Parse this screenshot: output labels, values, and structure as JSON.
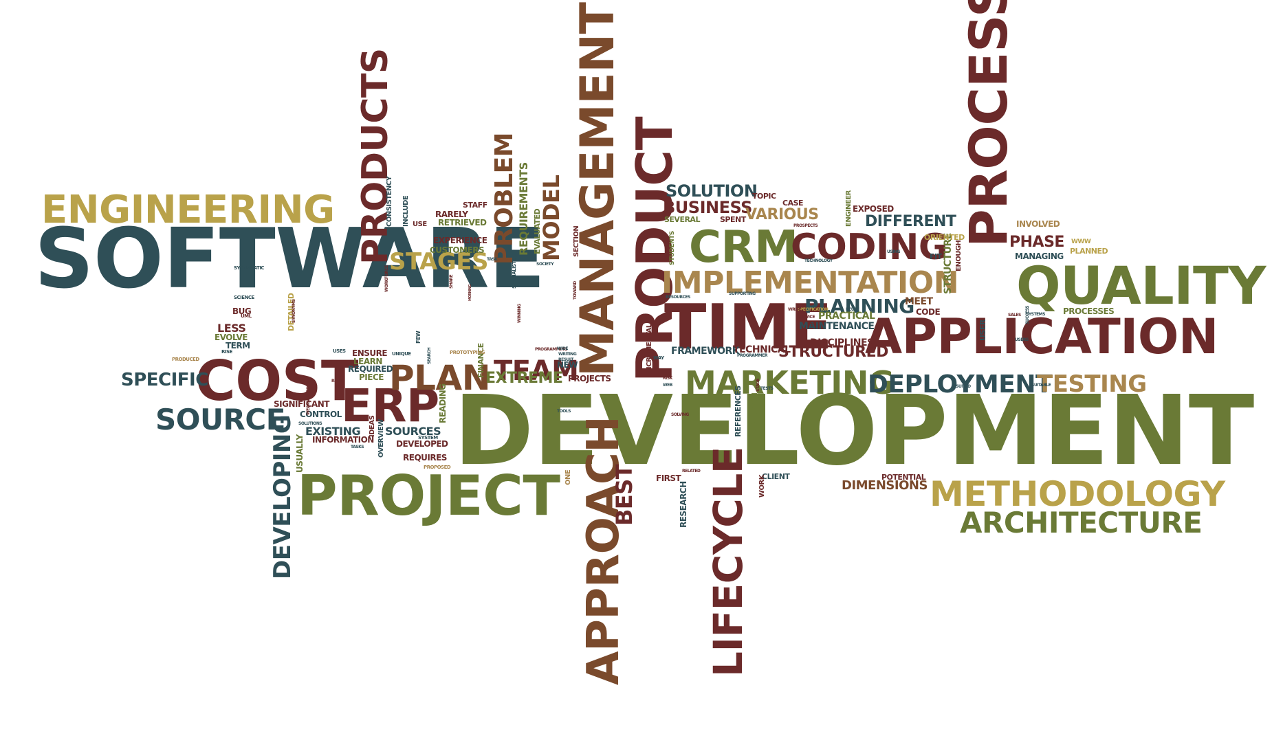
{
  "palette": {
    "teal": "#2f4f57",
    "maroon": "#6b2a2a",
    "olive": "#6a7a36",
    "gold": "#b9a24a",
    "tan": "#a9864e",
    "brown": "#7a4a2c"
  },
  "words": [
    {
      "text": "SOFTWARE",
      "color": "teal"
    },
    {
      "text": "DEVELOPMENT",
      "color": "olive"
    },
    {
      "text": "ENGINEERING",
      "color": "gold"
    },
    {
      "text": "PROCESS",
      "color": "maroon"
    },
    {
      "text": "QUALITY",
      "color": "olive"
    },
    {
      "text": "APPLICATION",
      "color": "maroon"
    },
    {
      "text": "PROJECT",
      "color": "olive"
    },
    {
      "text": "METHODOLOGY",
      "color": "gold"
    },
    {
      "text": "ARCHITECTURE",
      "color": "olive"
    },
    {
      "text": "MANAGEMENT",
      "color": "brown"
    },
    {
      "text": "PRODUCT",
      "color": "maroon"
    },
    {
      "text": "TIME",
      "color": "maroon"
    },
    {
      "text": "CRM",
      "color": "olive"
    },
    {
      "text": "CODING",
      "color": "maroon"
    },
    {
      "text": "IMPLEMENTATION",
      "color": "tan"
    },
    {
      "text": "COST",
      "color": "maroon"
    },
    {
      "text": "ERP",
      "color": "maroon"
    },
    {
      "text": "PLAN",
      "color": "brown"
    },
    {
      "text": "TEAM",
      "color": "maroon"
    },
    {
      "text": "MARKETING",
      "color": "olive"
    },
    {
      "text": "DEPLOYMENT",
      "color": "teal"
    },
    {
      "text": "TESTING",
      "color": "tan"
    },
    {
      "text": "APPROACH",
      "color": "brown"
    },
    {
      "text": "LIFECYCLE",
      "color": "maroon"
    },
    {
      "text": "DEVELOPING",
      "color": "teal"
    },
    {
      "text": "PRODUCTS",
      "color": "maroon"
    },
    {
      "text": "PROBLEM",
      "color": "brown"
    },
    {
      "text": "MODEL",
      "color": "brown"
    },
    {
      "text": "STAGES",
      "color": "gold"
    },
    {
      "text": "SOURCE",
      "color": "teal"
    },
    {
      "text": "SPECIFIC",
      "color": "teal"
    },
    {
      "text": "PLANNING",
      "color": "teal"
    },
    {
      "text": "STRUCTURED",
      "color": "maroon"
    },
    {
      "text": "DIFFERENT",
      "color": "teal"
    },
    {
      "text": "BUSINESS",
      "color": "maroon"
    },
    {
      "text": "SOLUTION",
      "color": "teal"
    },
    {
      "text": "VARIOUS",
      "color": "tan"
    },
    {
      "text": "PHASE",
      "color": "maroon"
    },
    {
      "text": "BEST",
      "color": "maroon"
    },
    {
      "text": "EXTREME",
      "color": "olive"
    },
    {
      "text": "FRAMEWORK",
      "color": "teal"
    },
    {
      "text": "DIMENSIONS",
      "color": "brown"
    },
    {
      "text": "REQUIREMENTS",
      "color": "olive"
    },
    {
      "text": "SOURCES",
      "color": "teal"
    },
    {
      "text": "EXISTING",
      "color": "teal"
    },
    {
      "text": "CUSTOMERS",
      "color": "olive"
    },
    {
      "text": "EXPERIENCE",
      "color": "maroon"
    },
    {
      "text": "RETRIEVED",
      "color": "olive"
    },
    {
      "text": "RARELY",
      "color": "maroon"
    },
    {
      "text": "STAFF",
      "color": "maroon"
    },
    {
      "text": "EVALUATED",
      "color": "olive"
    },
    {
      "text": "CONSISTENCY",
      "color": "teal"
    },
    {
      "text": "INCLUDE",
      "color": "teal"
    },
    {
      "text": "USE",
      "color": "maroon"
    },
    {
      "text": "ENSURE",
      "color": "maroon"
    },
    {
      "text": "REQUIRED",
      "color": "teal"
    },
    {
      "text": "LEARN",
      "color": "olive"
    },
    {
      "text": "PIECE",
      "color": "olive"
    },
    {
      "text": "LESS",
      "color": "maroon"
    },
    {
      "text": "BUG",
      "color": "maroon"
    },
    {
      "text": "EVOLVE",
      "color": "olive"
    },
    {
      "text": "TERM",
      "color": "teal"
    },
    {
      "text": "SIGNIFICANT",
      "color": "maroon"
    },
    {
      "text": "CONTROL",
      "color": "teal"
    },
    {
      "text": "INFORMATION",
      "color": "maroon"
    },
    {
      "text": "DEVELOPED",
      "color": "maroon"
    },
    {
      "text": "REQUIRES",
      "color": "maroon"
    },
    {
      "text": "IDEAS",
      "color": "maroon"
    },
    {
      "text": "OVERVIEW",
      "color": "teal"
    },
    {
      "text": "USUALLY",
      "color": "olive"
    },
    {
      "text": "READING",
      "color": "olive"
    },
    {
      "text": "FINANCE",
      "color": "olive"
    },
    {
      "text": "NEW",
      "color": "teal"
    },
    {
      "text": "PROJECTS",
      "color": "maroon"
    },
    {
      "text": "TECHNICAL",
      "color": "maroon"
    },
    {
      "text": "DISCIPLINES",
      "color": "maroon"
    },
    {
      "text": "MAINTENANCE",
      "color": "teal"
    },
    {
      "text": "PRACTICAL",
      "color": "olive"
    },
    {
      "text": "MEET",
      "color": "brown"
    },
    {
      "text": "CODE",
      "color": "maroon"
    },
    {
      "text": "STRUCTURE",
      "color": "olive"
    },
    {
      "text": "ENOUGH",
      "color": "maroon"
    },
    {
      "text": "ORIENTED",
      "color": "gold"
    },
    {
      "text": "FIT",
      "color": "teal"
    },
    {
      "text": "INVOLVED",
      "color": "tan"
    },
    {
      "text": "MANAGING",
      "color": "teal"
    },
    {
      "text": "PLANNED",
      "color": "gold"
    },
    {
      "text": "PROCESSES",
      "color": "olive"
    },
    {
      "text": "EXPOSED",
      "color": "maroon"
    },
    {
      "text": "ENGINEER",
      "color": "olive"
    },
    {
      "text": "CASE",
      "color": "maroon"
    },
    {
      "text": "TOPIC",
      "color": "maroon"
    },
    {
      "text": "SPENT",
      "color": "maroon"
    },
    {
      "text": "SEVERAL",
      "color": "olive"
    },
    {
      "text": "INCREMENTAL",
      "color": "maroon"
    },
    {
      "text": "STUDENTS",
      "color": "olive"
    },
    {
      "text": "REFERENCES",
      "color": "teal"
    },
    {
      "text": "EVOLUTION",
      "color": "olive"
    },
    {
      "text": "RESEARCH",
      "color": "teal"
    },
    {
      "text": "FIRST",
      "color": "maroon"
    },
    {
      "text": "CLIENT",
      "color": "teal"
    },
    {
      "text": "WORK",
      "color": "maroon"
    },
    {
      "text": "POTENTIAL",
      "color": "maroon"
    },
    {
      "text": "ONE",
      "color": "tan"
    },
    {
      "text": "SECTION",
      "color": "maroon"
    },
    {
      "text": "DETAILED",
      "color": "gold"
    },
    {
      "text": "USER",
      "color": "teal"
    },
    {
      "text": "WWW",
      "color": "gold"
    },
    {
      "text": "SYSTEMATIC",
      "color": "teal"
    },
    {
      "text": "SCIENCE",
      "color": "teal"
    },
    {
      "text": "RISE",
      "color": "teal"
    },
    {
      "text": "PRODUCED",
      "color": "tan"
    },
    {
      "text": "USES",
      "color": "teal"
    },
    {
      "text": "UNIQUE",
      "color": "teal"
    },
    {
      "text": "SYSTEM",
      "color": "teal"
    },
    {
      "text": "PROPOSED",
      "color": "tan"
    },
    {
      "text": "SOLUTIONS",
      "color": "teal"
    },
    {
      "text": "TASKS",
      "color": "teal"
    },
    {
      "text": "REFER",
      "color": "maroon"
    },
    {
      "text": "PROTOTYPING",
      "color": "tan"
    },
    {
      "text": "SEARCH",
      "color": "teal"
    },
    {
      "text": "FEW",
      "color": "teal"
    },
    {
      "text": "SHARE",
      "color": "maroon"
    },
    {
      "text": "MORNING",
      "color": "maroon"
    },
    {
      "text": "WORKFORCE",
      "color": "maroon"
    },
    {
      "text": "WINNING",
      "color": "maroon"
    },
    {
      "text": "SPECIALISTS",
      "color": "teal"
    },
    {
      "text": "SOCIETY",
      "color": "teal"
    },
    {
      "text": "TASK",
      "color": "teal"
    },
    {
      "text": "PROGRAMMING",
      "color": "maroon"
    },
    {
      "text": "RESULT",
      "color": "teal"
    },
    {
      "text": "WRITING",
      "color": "teal"
    },
    {
      "text": "WIDE",
      "color": "teal"
    },
    {
      "text": "TOWARD",
      "color": "maroon"
    },
    {
      "text": "SYNONYMS",
      "color": "maroon"
    },
    {
      "text": "WEAKNESSES",
      "color": "maroon"
    },
    {
      "text": "UML",
      "color": "maroon"
    },
    {
      "text": "TOOLS",
      "color": "teal"
    },
    {
      "text": "WAY",
      "color": "teal"
    },
    {
      "text": "RISK",
      "color": "maroon"
    },
    {
      "text": "WEB",
      "color": "teal"
    },
    {
      "text": "SOLVING",
      "color": "maroon"
    },
    {
      "text": "RELATED",
      "color": "maroon"
    },
    {
      "text": "PROGRAMMER",
      "color": "teal"
    },
    {
      "text": "STAGE",
      "color": "maroon"
    },
    {
      "text": "TESTS",
      "color": "teal"
    },
    {
      "text": "SPECIFICATION",
      "color": "gold"
    },
    {
      "text": "SERVICE",
      "color": "maroon"
    },
    {
      "text": "KEY",
      "color": "maroon"
    },
    {
      "text": "REUSE",
      "color": "teal"
    },
    {
      "text": "WRITE",
      "color": "maroon"
    },
    {
      "text": "SUPPORTING",
      "color": "teal"
    },
    {
      "text": "RESOURCES",
      "color": "teal"
    },
    {
      "text": "USING",
      "color": "teal"
    },
    {
      "text": "TECHNOLOGY",
      "color": "teal"
    },
    {
      "text": "PROSPECTS",
      "color": "maroon"
    },
    {
      "text": "SALES",
      "color": "maroon"
    },
    {
      "text": "SUCCESS",
      "color": "teal"
    },
    {
      "text": "SYSTEMS",
      "color": "teal"
    },
    {
      "text": "USERS",
      "color": "teal"
    },
    {
      "text": "SUITED",
      "color": "teal"
    },
    {
      "text": "SUITABLE",
      "color": "teal"
    }
  ]
}
